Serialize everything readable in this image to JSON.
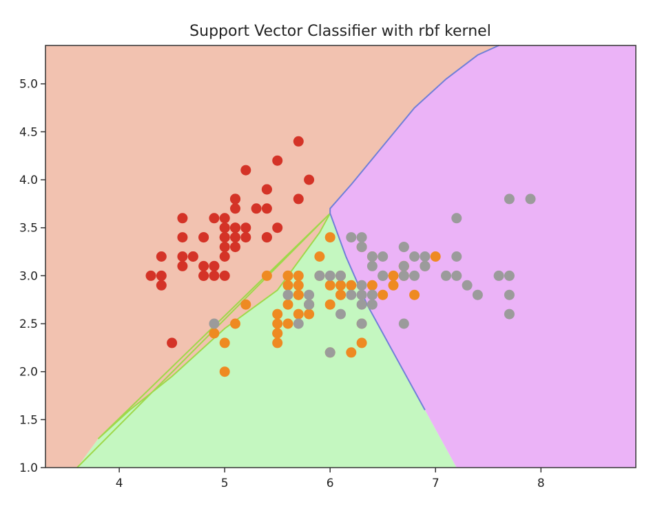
{
  "chart_data": {
    "type": "scatter",
    "title": "Support Vector Classifier with rbf kernel",
    "xlabel": "",
    "ylabel": "",
    "xlim": [
      3.3,
      8.9
    ],
    "ylim": [
      1.0,
      5.4
    ],
    "x_ticks": [
      4,
      5,
      6,
      7,
      8
    ],
    "y_ticks": [
      1.0,
      1.5,
      2.0,
      2.5,
      3.0,
      3.5,
      4.0,
      4.5,
      5.0
    ],
    "x_tick_labels": [
      "4",
      "5",
      "6",
      "7",
      "8"
    ],
    "y_tick_labels": [
      "1.0",
      "1.5",
      "2.0",
      "2.5",
      "3.0",
      "3.5",
      "4.0",
      "4.5",
      "5.0"
    ],
    "grid": false,
    "legend": "none",
    "colors": {
      "region_red": "#f2c2b0",
      "region_green": "#c4f7c0",
      "region_purple": "#ebb3f7",
      "boundary_green": "#9fd84a",
      "boundary_blue": "#6f7fd8",
      "series_0": "#d43327",
      "series_1": "#ee8a22",
      "series_2": "#9b9b9b",
      "axis": "#333333"
    },
    "decision_regions": [
      {
        "class": 0,
        "color": "#f2c2b0",
        "polygon": [
          [
            3.3,
            1.0
          ],
          [
            3.6,
            1.0
          ],
          [
            3.8,
            1.3
          ],
          [
            4.1,
            1.6
          ],
          [
            4.5,
            1.95
          ],
          [
            5.0,
            2.45
          ],
          [
            5.5,
            2.85
          ],
          [
            5.9,
            3.45
          ],
          [
            6.0,
            3.65
          ],
          [
            6.0,
            3.7
          ],
          [
            6.2,
            3.95
          ],
          [
            6.5,
            4.35
          ],
          [
            6.8,
            4.75
          ],
          [
            7.1,
            5.05
          ],
          [
            7.4,
            5.3
          ],
          [
            7.6,
            5.4
          ],
          [
            3.3,
            5.4
          ]
        ]
      },
      {
        "class": 1,
        "color": "#c4f7c0",
        "polygon": [
          [
            3.6,
            1.0
          ],
          [
            7.2,
            1.0
          ],
          [
            6.9,
            1.6
          ],
          [
            6.6,
            2.2
          ],
          [
            6.35,
            2.7
          ],
          [
            6.15,
            3.2
          ],
          [
            6.0,
            3.65
          ],
          [
            5.9,
            3.45
          ],
          [
            5.5,
            2.85
          ],
          [
            5.0,
            2.45
          ],
          [
            4.5,
            1.95
          ],
          [
            4.1,
            1.6
          ],
          [
            3.8,
            1.3
          ]
        ]
      },
      {
        "class": 2,
        "color": "#ebb3f7",
        "polygon": [
          [
            7.2,
            1.0
          ],
          [
            8.9,
            1.0
          ],
          [
            8.9,
            5.4
          ],
          [
            7.6,
            5.4
          ],
          [
            7.4,
            5.3
          ],
          [
            7.1,
            5.05
          ],
          [
            6.8,
            4.75
          ],
          [
            6.5,
            4.35
          ],
          [
            6.2,
            3.95
          ],
          [
            6.0,
            3.7
          ],
          [
            6.0,
            3.65
          ],
          [
            6.15,
            3.2
          ],
          [
            6.35,
            2.7
          ],
          [
            6.6,
            2.2
          ],
          [
            6.9,
            1.6
          ]
        ]
      }
    ],
    "series": [
      {
        "color": "#d43327",
        "x": [
          5.1,
          4.9,
          4.7,
          4.6,
          5.0,
          5.4,
          4.6,
          5.0,
          4.4,
          4.9,
          5.4,
          4.8,
          4.8,
          4.3,
          5.8,
          5.7,
          5.4,
          5.1,
          5.7,
          5.1,
          5.4,
          5.1,
          4.6,
          5.1,
          4.8,
          5.0,
          5.0,
          5.2,
          5.2,
          4.7,
          4.8,
          5.4,
          5.2,
          5.5,
          4.9,
          5.0,
          5.5,
          4.9,
          4.4,
          5.1,
          5.0,
          4.5,
          4.4,
          5.0,
          5.1,
          4.8,
          5.1,
          4.6,
          5.3,
          5.0
        ],
        "y": [
          3.5,
          3.0,
          3.2,
          3.1,
          3.6,
          3.9,
          3.4,
          3.4,
          2.9,
          3.1,
          3.7,
          3.4,
          3.0,
          3.0,
          4.0,
          4.4,
          3.9,
          3.5,
          3.8,
          3.8,
          3.4,
          3.7,
          3.6,
          3.3,
          3.4,
          3.0,
          3.4,
          3.5,
          3.4,
          3.2,
          3.1,
          3.4,
          4.1,
          4.2,
          3.1,
          3.2,
          3.5,
          3.6,
          3.0,
          3.4,
          3.5,
          2.3,
          3.2,
          3.5,
          3.8,
          3.0,
          3.8,
          3.2,
          3.7,
          3.3
        ]
      },
      {
        "color": "#ee8a22",
        "x": [
          7.0,
          6.4,
          6.9,
          5.5,
          6.5,
          5.7,
          6.3,
          4.9,
          6.6,
          5.2,
          5.0,
          5.9,
          6.0,
          6.1,
          5.6,
          6.7,
          5.6,
          5.8,
          6.2,
          5.6,
          5.9,
          6.1,
          6.3,
          6.1,
          6.4,
          6.6,
          6.8,
          6.7,
          6.0,
          5.7,
          5.5,
          5.5,
          5.8,
          6.0,
          5.4,
          6.0,
          6.7,
          6.3,
          5.6,
          5.5,
          5.5,
          6.1,
          5.8,
          5.0,
          5.6,
          5.7,
          5.7,
          6.2,
          5.1,
          5.7
        ],
        "y": [
          3.2,
          3.2,
          3.1,
          2.3,
          2.8,
          2.8,
          3.3,
          2.4,
          2.9,
          2.7,
          2.0,
          3.0,
          2.2,
          2.9,
          2.9,
          3.1,
          3.0,
          2.7,
          2.2,
          2.5,
          3.2,
          2.8,
          2.5,
          2.8,
          2.9,
          3.0,
          2.8,
          3.0,
          2.9,
          2.6,
          2.4,
          2.4,
          2.7,
          2.7,
          3.0,
          3.4,
          3.1,
          2.3,
          3.0,
          2.5,
          2.6,
          3.0,
          2.6,
          2.3,
          2.7,
          3.0,
          2.9,
          2.9,
          2.5,
          2.8
        ]
      },
      {
        "color": "#9b9b9b",
        "x": [
          6.3,
          5.8,
          7.1,
          6.3,
          6.5,
          7.6,
          4.9,
          7.3,
          6.7,
          7.2,
          6.5,
          6.4,
          6.8,
          5.7,
          5.8,
          6.4,
          6.5,
          7.7,
          7.7,
          6.0,
          6.9,
          5.6,
          7.7,
          6.3,
          6.7,
          7.2,
          6.2,
          6.1,
          6.4,
          7.2,
          7.4,
          7.9,
          6.4,
          6.3,
          6.1,
          7.7,
          6.3,
          6.4,
          6.0,
          6.9,
          6.7,
          6.9,
          5.8,
          6.8,
          6.7,
          6.7,
          6.3,
          6.5,
          6.2,
          5.9
        ],
        "y": [
          3.3,
          2.7,
          3.0,
          2.9,
          3.0,
          3.0,
          2.5,
          2.9,
          2.5,
          3.6,
          3.2,
          2.7,
          3.0,
          2.5,
          2.8,
          3.2,
          3.0,
          3.8,
          2.6,
          2.2,
          3.2,
          2.8,
          2.8,
          2.7,
          3.3,
          3.2,
          2.8,
          3.0,
          2.8,
          3.0,
          2.8,
          3.8,
          2.8,
          2.8,
          2.6,
          3.0,
          3.4,
          3.1,
          3.0,
          3.1,
          3.1,
          3.1,
          2.7,
          3.2,
          3.3,
          3.0,
          2.5,
          3.0,
          3.4,
          3.0
        ]
      }
    ]
  }
}
